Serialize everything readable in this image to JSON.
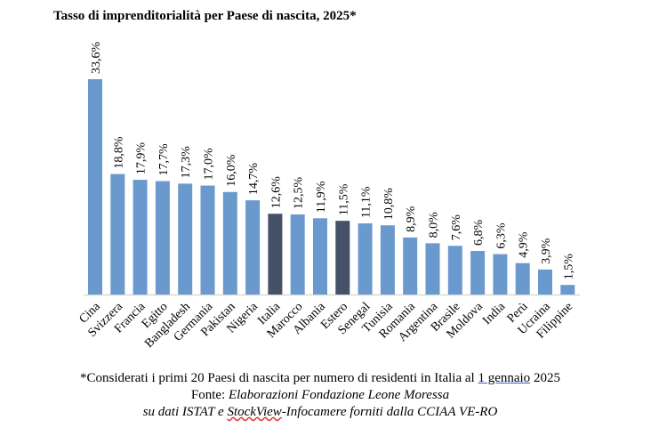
{
  "chart_data": {
    "type": "bar",
    "title": "Tasso di imprenditorialità per Paese di nascita, 2025*",
    "categories": [
      "Cina",
      "Svizzera",
      "Francia",
      "Egitto",
      "Bangladesh",
      "Germania",
      "Pakistan",
      "Nigeria",
      "Italia",
      "Marocco",
      "Albania",
      "Estero",
      "Senegal",
      "Tunisia",
      "Romania",
      "Argentina",
      "Brasile",
      "Moldova",
      "India",
      "Perù",
      "Ucraina",
      "Filippine"
    ],
    "values": [
      33.6,
      18.8,
      17.9,
      17.7,
      17.3,
      17.0,
      16.0,
      14.7,
      12.6,
      12.5,
      11.9,
      11.5,
      11.1,
      10.8,
      8.9,
      8.0,
      7.6,
      6.8,
      6.3,
      4.9,
      3.9,
      1.5
    ],
    "data_labels": [
      "33,6%",
      "18,8%",
      "17,9%",
      "17,7%",
      "17,3%",
      "17,0%",
      "16,0%",
      "14,7%",
      "12,6%",
      "12,5%",
      "11,9%",
      "11,5%",
      "11,1%",
      "10,8%",
      "8,9%",
      "8,0%",
      "7,6%",
      "6,8%",
      "6,3%",
      "4,9%",
      "3,9%",
      "1,5%"
    ],
    "highlighted": [
      "Italia",
      "Estero"
    ],
    "colors": {
      "default": "#6a9acd",
      "highlight": "#465067",
      "axis": "#d9d9d9"
    },
    "xlabel": "",
    "ylabel": "",
    "ylim": [
      0,
      35
    ],
    "grid": false,
    "legend": "none"
  },
  "footnote": {
    "line1_pre": "*Considerati i primi 20 Paesi di nascita per numero di residenti in Italia al ",
    "line1_link": "1 gennaio",
    "line1_post": " 2025",
    "line2_label": "Fonte: ",
    "line2_source": "Elaborazioni Fondazione Leone Moressa",
    "line3_pre": "su dati ISTAT e ",
    "line3_spell": "StockView",
    "line3_post": "-Infocamere forniti dalla CCIAA VE-RO"
  }
}
